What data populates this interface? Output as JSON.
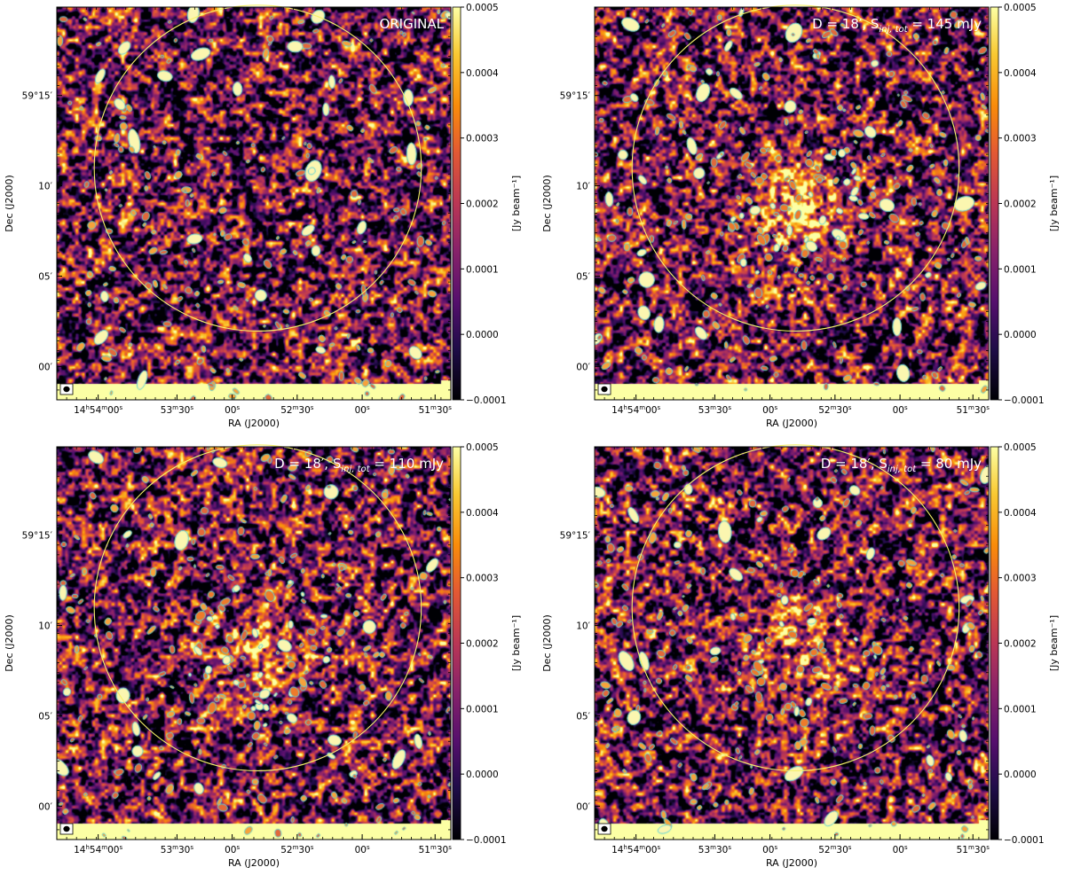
{
  "figure": {
    "panels": [
      {
        "id": "p1",
        "label": "ORIGINAL"
      },
      {
        "id": "p2",
        "label_prefix": "D = 18′, S",
        "label_sub": "inj, tot",
        "label_suffix": " = 145 mJy"
      },
      {
        "id": "p3",
        "label_prefix": "D = 18′, S",
        "label_sub": "inj, tot",
        "label_suffix": " = 110 mJy"
      },
      {
        "id": "p4",
        "label_prefix": "D = 18′, S",
        "label_sub": "inj, tot",
        "label_suffix": " = 80 mJy"
      }
    ],
    "xlabel": "RA (J2000)",
    "ylabel": "Dec (J2000)",
    "colorbar_label": "[Jy beam⁻¹]",
    "xticks": [
      {
        "h": "14",
        "hu": "h",
        "m": "54",
        "mu": "m",
        "s": "00",
        "su": "s"
      },
      {
        "h": "",
        "hu": "",
        "m": "53",
        "mu": "m",
        "s": "30",
        "su": "s"
      },
      {
        "h": "",
        "hu": "",
        "m": "",
        "mu": "",
        "s": "00",
        "su": "s"
      },
      {
        "h": "",
        "hu": "",
        "m": "52",
        "mu": "m",
        "s": "30",
        "su": "s"
      },
      {
        "h": "",
        "hu": "",
        "m": "",
        "mu": "",
        "s": "00",
        "su": "s"
      },
      {
        "h": "",
        "hu": "",
        "m": "51",
        "mu": "m",
        "s": "30",
        "su": "s"
      }
    ],
    "yticks": [
      "59°15′",
      "10′",
      "05′",
      "00′"
    ],
    "cbar_ticks": [
      "0.0005",
      "0.0004",
      "0.0003",
      "0.0002",
      "0.0001",
      "0.0000",
      "−0.0001"
    ],
    "colormap": "inferno",
    "contour_color": "#5fd3d6",
    "circle_color": "#f5f06a"
  }
}
